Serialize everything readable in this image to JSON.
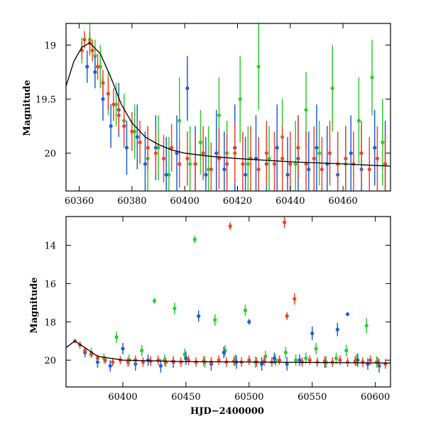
{
  "chart_data": [
    {
      "type": "scatter",
      "panel": "top",
      "title": "",
      "xlabel": "",
      "ylabel": "Magnitude",
      "xlim": [
        60355,
        60478
      ],
      "ylim": [
        20.35,
        18.8
      ],
      "y_inverted": true,
      "x_tick_labels": [
        "60360",
        "60380",
        "60400",
        "60420",
        "60440",
        "60460"
      ],
      "x_ticks": [
        60360,
        60380,
        60400,
        60420,
        60440,
        60460
      ],
      "y_tick_labels": [
        "19",
        "19.5",
        "20"
      ],
      "y_ticks": [
        19,
        19.5,
        20
      ],
      "grid": false,
      "model_curve": {
        "color": "#000000",
        "x": [
          60355,
          60358,
          60361,
          60364,
          60368,
          60372,
          60376,
          60380,
          60385,
          60390,
          60395,
          60400,
          60410,
          60420,
          60440,
          60460,
          60478
        ],
        "y": [
          19.38,
          19.15,
          19.02,
          18.98,
          19.08,
          19.3,
          19.55,
          19.72,
          19.85,
          19.92,
          19.97,
          20.0,
          20.03,
          20.05,
          20.08,
          20.1,
          20.12
        ]
      },
      "series": [
        {
          "color": "#2ecc2e",
          "x": [
            60361,
            60364,
            60366,
            60368,
            60371,
            60374,
            60377,
            60381,
            60386,
            60390,
            60394,
            60398,
            60402,
            60406,
            60409,
            60413,
            60416,
            60421,
            60424,
            60428,
            60432,
            60437,
            60442,
            60446,
            60451,
            60456,
            60461,
            60466,
            60471,
            60475
          ],
          "y": [
            19.05,
            18.95,
            19.1,
            19.2,
            19.45,
            19.55,
            19.7,
            19.8,
            20.05,
            19.95,
            20.2,
            19.7,
            20.1,
            19.9,
            20.15,
            19.65,
            20.0,
            19.5,
            20.1,
            19.2,
            20.05,
            19.85,
            20.1,
            19.6,
            20.0,
            19.4,
            20.1,
            19.7,
            19.3,
            19.9
          ],
          "err": [
            0.12,
            0.15,
            0.15,
            0.2,
            0.2,
            0.2,
            0.25,
            0.25,
            0.3,
            0.3,
            0.35,
            0.4,
            0.35,
            0.3,
            0.4,
            0.35,
            0.3,
            0.4,
            0.35,
            0.4,
            0.3,
            0.35,
            0.4,
            0.35,
            0.3,
            0.4,
            0.35,
            0.4,
            0.35,
            0.4
          ]
        },
        {
          "color": "#1f5fd6",
          "x": [
            60363,
            60366,
            60369,
            60372,
            60375,
            60378,
            60382,
            60385,
            60389,
            60393,
            60397,
            60401,
            60404,
            60408,
            60412,
            60415,
            60419,
            60423,
            60427,
            60431,
            60435,
            60439,
            60443,
            60447,
            60450,
            60454,
            60458,
            60463,
            60467,
            60472,
            60476
          ],
          "y": [
            19.2,
            19.25,
            19.5,
            19.75,
            19.6,
            19.95,
            19.85,
            20.1,
            19.95,
            20.2,
            20.0,
            19.4,
            20.1,
            20.2,
            20.0,
            20.15,
            19.95,
            20.2,
            20.05,
            20.1,
            19.95,
            20.2,
            20.05,
            20.15,
            19.95,
            20.1,
            20.2,
            20.0,
            20.15,
            19.95,
            20.1
          ],
          "err": [
            0.15,
            0.15,
            0.2,
            0.2,
            0.25,
            0.25,
            0.3,
            0.3,
            0.3,
            0.35,
            0.35,
            0.3,
            0.35,
            0.35,
            0.4,
            0.35,
            0.4,
            0.35,
            0.4,
            0.35,
            0.4,
            0.35,
            0.4,
            0.35,
            0.4,
            0.35,
            0.4,
            0.35,
            0.4,
            0.35,
            0.4
          ]
        },
        {
          "color": "#f0432a",
          "x": [
            60361,
            60362,
            60364,
            60365,
            60367,
            60369,
            60371,
            60373,
            60375,
            60377,
            60380,
            60383,
            60386,
            60389,
            60392,
            60395,
            60398,
            60401,
            60404,
            60407,
            60410,
            60413,
            60416,
            60419,
            60422,
            60425,
            60428,
            60431,
            60434,
            60437,
            60440,
            60443,
            60446,
            60449,
            60452,
            60455,
            60458,
            60461,
            60464,
            60467,
            60470,
            60473,
            60476
          ],
          "y": [
            19.05,
            18.95,
            18.98,
            19.05,
            19.2,
            19.35,
            19.45,
            19.55,
            19.65,
            19.75,
            19.8,
            19.9,
            19.95,
            20.0,
            20.05,
            19.95,
            20.1,
            20.05,
            20.1,
            20.0,
            20.15,
            20.05,
            20.1,
            20.0,
            20.1,
            20.05,
            20.15,
            20.0,
            20.1,
            20.05,
            20.1,
            19.95,
            20.1,
            20.05,
            20.15,
            20.0,
            20.1,
            20.05,
            20.1,
            20.0,
            20.15,
            20.05,
            20.1
          ],
          "err": [
            0.08,
            0.08,
            0.1,
            0.1,
            0.12,
            0.12,
            0.15,
            0.15,
            0.15,
            0.18,
            0.18,
            0.2,
            0.2,
            0.2,
            0.22,
            0.22,
            0.22,
            0.25,
            0.25,
            0.25,
            0.25,
            0.28,
            0.28,
            0.28,
            0.3,
            0.3,
            0.3,
            0.3,
            0.3,
            0.3,
            0.3,
            0.3,
            0.3,
            0.3,
            0.3,
            0.3,
            0.3,
            0.3,
            0.3,
            0.3,
            0.3,
            0.3,
            0.3
          ]
        }
      ]
    },
    {
      "type": "scatter",
      "panel": "bottom",
      "title": "",
      "xlabel": "HJD−2400000",
      "ylabel": "Magnitude",
      "xlim": [
        60355,
        60612
      ],
      "ylim": [
        21.4,
        12.5
      ],
      "y_inverted": true,
      "x_tick_labels": [
        "60400",
        "60450",
        "60500",
        "60550",
        "60600"
      ],
      "x_ticks": [
        60400,
        60450,
        60500,
        60550,
        60600
      ],
      "y_tick_labels": [
        "14",
        "16",
        "18",
        "20"
      ],
      "y_ticks": [
        14,
        16,
        18,
        20
      ],
      "grid": false,
      "model_curve": {
        "color": "#000000",
        "x": [
          60355,
          60362,
          60370,
          60380,
          60400,
          60450,
          60500,
          60550,
          60612
        ],
        "y": [
          19.35,
          19.0,
          19.35,
          19.8,
          20.0,
          20.08,
          20.1,
          20.12,
          20.15
        ]
      },
      "series": [
        {
          "color": "#2ecc2e",
          "x": [
            60366,
            60375,
            60385,
            60395,
            60405,
            60415,
            60425,
            60433,
            60441,
            60449,
            60457,
            60465,
            60473,
            60481,
            60489,
            60497,
            60505,
            60513,
            60521,
            60529,
            60537,
            60545,
            60553,
            60561,
            60569,
            60577,
            60585,
            60593,
            60601
          ],
          "y": [
            19.2,
            19.6,
            19.9,
            18.8,
            20.0,
            19.5,
            16.9,
            20.0,
            17.3,
            19.7,
            13.7,
            20.1,
            17.9,
            19.5,
            20.0,
            17.4,
            20.1,
            19.8,
            20.0,
            19.6,
            20.0,
            19.9,
            19.4,
            20.1,
            19.9,
            19.5,
            20.0,
            18.2,
            20.1
          ],
          "err": [
            0.2,
            0.25,
            0.25,
            0.3,
            0.3,
            0.3,
            0.15,
            0.3,
            0.3,
            0.3,
            0.2,
            0.3,
            0.3,
            0.3,
            0.3,
            0.3,
            0.3,
            0.3,
            0.3,
            0.3,
            0.3,
            0.3,
            0.3,
            0.3,
            0.3,
            0.3,
            0.3,
            0.4,
            0.3
          ]
        },
        {
          "color": "#1f5fd6",
          "x": [
            60370,
            60380,
            60390,
            60400,
            60410,
            60420,
            60430,
            60440,
            60450,
            60460,
            60470,
            60480,
            60490,
            60500,
            60510,
            60520,
            60530,
            60540,
            60550,
            60560,
            60570,
            60578,
            60586,
            60594,
            60603
          ],
          "y": [
            19.6,
            20.1,
            20.3,
            19.4,
            20.2,
            20.0,
            20.3,
            20.1,
            19.9,
            17.7,
            20.2,
            19.6,
            20.1,
            18.0,
            20.2,
            19.9,
            20.2,
            20.0,
            18.6,
            20.1,
            18.4,
            17.6,
            20.0,
            20.2,
            20.3
          ],
          "err": [
            0.25,
            0.3,
            0.3,
            0.3,
            0.35,
            0.3,
            0.35,
            0.3,
            0.35,
            0.3,
            0.35,
            0.3,
            0.35,
            0.15,
            0.35,
            0.3,
            0.35,
            0.3,
            0.35,
            0.3,
            0.35,
            0.1,
            0.35,
            0.3,
            0.35
          ]
        },
        {
          "color": "#f0432a",
          "x": [
            60362,
            60366,
            60370,
            60375,
            60380,
            60386,
            60392,
            60398,
            60404,
            60410,
            60416,
            60422,
            60428,
            60434,
            60440,
            60446,
            60452,
            60458,
            60464,
            60470,
            60476,
            60482,
            60485,
            60488,
            60494,
            60500,
            60506,
            60512,
            60518,
            60524,
            60528,
            60530,
            60536,
            60542,
            60548,
            60554,
            60560,
            60566,
            60572,
            60578,
            60584,
            60590,
            60596,
            60602,
            60608
          ],
          "y": [
            19.0,
            19.2,
            19.5,
            19.7,
            19.9,
            20.0,
            20.1,
            20.0,
            20.1,
            20.0,
            20.1,
            20.05,
            20.0,
            20.1,
            20.05,
            20.1,
            20.0,
            20.1,
            20.05,
            20.1,
            20.0,
            20.1,
            13.0,
            20.05,
            20.1,
            20.0,
            20.1,
            20.05,
            20.1,
            20.0,
            12.8,
            17.7,
            16.8,
            20.1,
            20.0,
            20.1,
            20.05,
            20.1,
            20.0,
            20.1,
            20.05,
            20.1,
            20.0,
            20.1,
            20.2
          ],
          "err": [
            0.1,
            0.12,
            0.15,
            0.18,
            0.2,
            0.2,
            0.22,
            0.22,
            0.25,
            0.25,
            0.25,
            0.25,
            0.25,
            0.25,
            0.25,
            0.25,
            0.25,
            0.25,
            0.25,
            0.25,
            0.25,
            0.25,
            0.2,
            0.25,
            0.25,
            0.25,
            0.25,
            0.25,
            0.25,
            0.25,
            0.3,
            0.2,
            0.3,
            0.25,
            0.25,
            0.25,
            0.25,
            0.25,
            0.25,
            0.25,
            0.25,
            0.25,
            0.25,
            0.25,
            0.25
          ]
        }
      ]
    }
  ]
}
